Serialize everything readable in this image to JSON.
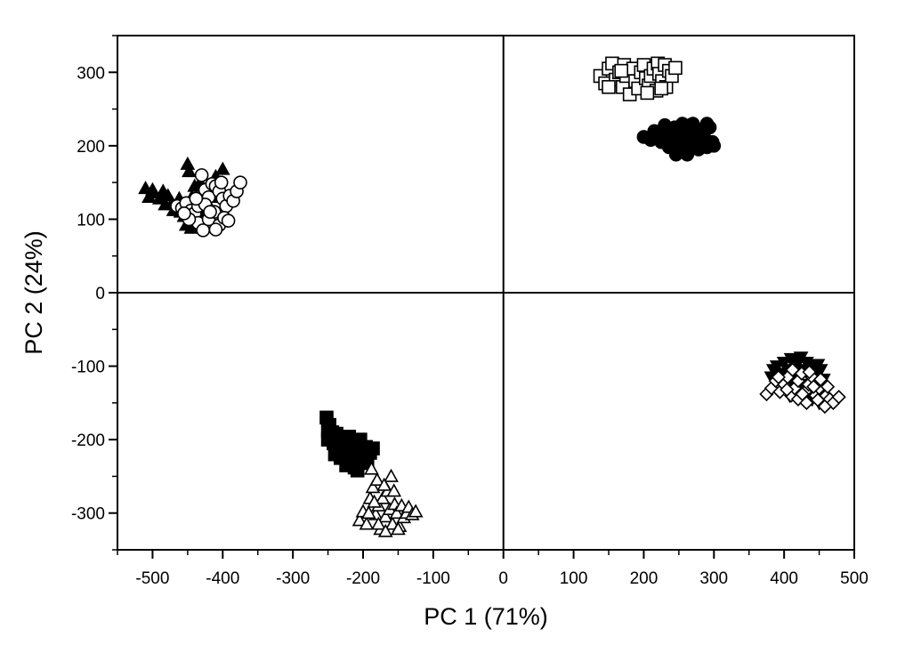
{
  "chart_data": {
    "type": "scatter",
    "title": "",
    "xlabel": "PC 1 (71%)",
    "ylabel": "PC 2 (24%)",
    "xlim": [
      -550,
      500
    ],
    "ylim": [
      -350,
      350
    ],
    "x_ticks": [
      -500,
      -400,
      -300,
      -200,
      -100,
      0,
      100,
      200,
      300,
      400,
      500
    ],
    "y_ticks": [
      300,
      200,
      100,
      0,
      -100,
      -200,
      -300
    ],
    "x_tick_labels": [
      "-500",
      "-400",
      "-300",
      "-200",
      "-100",
      "0",
      "100",
      "200",
      "300",
      "400",
      "500"
    ],
    "y_tick_labels": [
      "300",
      "200",
      "100",
      "0",
      "-100",
      "-200",
      "-300"
    ],
    "zero_lines": true,
    "grid": false,
    "legend": "none",
    "series": [
      {
        "marker": "triangle-filled",
        "points": [
          [
            -510,
            142
          ],
          [
            -505,
            130
          ],
          [
            -498,
            136
          ],
          [
            -490,
            128
          ],
          [
            -485,
            138
          ],
          [
            -478,
            132
          ],
          [
            -472,
            122
          ],
          [
            -466,
            118
          ],
          [
            -460,
            110
          ],
          [
            -455,
            104
          ],
          [
            -448,
            98
          ],
          [
            -452,
            92
          ],
          [
            -445,
            88
          ],
          [
            -440,
            100
          ],
          [
            -450,
            175
          ],
          [
            -448,
            165
          ],
          [
            -440,
            145
          ],
          [
            -432,
            150
          ],
          [
            -425,
            140
          ],
          [
            -418,
            135
          ],
          [
            -412,
            148
          ],
          [
            -405,
            130
          ],
          [
            -400,
            168
          ],
          [
            -410,
            158
          ],
          [
            -420,
            120
          ],
          [
            -462,
            128
          ],
          [
            -470,
            112
          ],
          [
            -438,
            112
          ],
          [
            -428,
            105
          ],
          [
            -500,
            140
          ],
          [
            -482,
            120
          ],
          [
            -444,
            130
          ]
        ]
      },
      {
        "marker": "circle-open",
        "points": [
          [
            -465,
            118
          ],
          [
            -458,
            115
          ],
          [
            -452,
            122
          ],
          [
            -445,
            112
          ],
          [
            -440,
            108
          ],
          [
            -435,
            118
          ],
          [
            -430,
            160
          ],
          [
            -425,
            140
          ],
          [
            -420,
            130
          ],
          [
            -415,
            148
          ],
          [
            -410,
            145
          ],
          [
            -405,
            138
          ],
          [
            -400,
            128
          ],
          [
            -395,
            118
          ],
          [
            -390,
            132
          ],
          [
            -385,
            125
          ],
          [
            -380,
            138
          ],
          [
            -375,
            150
          ],
          [
            -435,
            95
          ],
          [
            -428,
            85
          ],
          [
            -420,
            100
          ],
          [
            -412,
            110
          ],
          [
            -405,
            92
          ],
          [
            -398,
            102
          ],
          [
            -410,
            86
          ],
          [
            -392,
            98
          ],
          [
            -425,
            120
          ],
          [
            -418,
            110
          ],
          [
            -448,
            100
          ],
          [
            -455,
            108
          ],
          [
            -438,
            128
          ],
          [
            -402,
            150
          ]
        ]
      },
      {
        "marker": "square-open",
        "points": [
          [
            138,
            295
          ],
          [
            145,
            285
          ],
          [
            150,
            305
          ],
          [
            155,
            312
          ],
          [
            160,
            290
          ],
          [
            165,
            300
          ],
          [
            170,
            280
          ],
          [
            172,
            310
          ],
          [
            175,
            295
          ],
          [
            180,
            270
          ],
          [
            185,
            305
          ],
          [
            188,
            288
          ],
          [
            192,
            278
          ],
          [
            196,
            300
          ],
          [
            200,
            310
          ],
          [
            203,
            292
          ],
          [
            207,
            282
          ],
          [
            210,
            295
          ],
          [
            214,
            305
          ],
          [
            218,
            275
          ],
          [
            220,
            312
          ],
          [
            222,
            298
          ],
          [
            226,
            288
          ],
          [
            230,
            310
          ],
          [
            232,
            280
          ],
          [
            236,
            302
          ],
          [
            240,
            295
          ],
          [
            245,
            306
          ],
          [
            150,
            280
          ],
          [
            168,
            302
          ],
          [
            205,
            272
          ],
          [
            225,
            278
          ]
        ]
      },
      {
        "marker": "circle-filled",
        "points": [
          [
            200,
            212
          ],
          [
            210,
            208
          ],
          [
            215,
            220
          ],
          [
            220,
            215
          ],
          [
            225,
            205
          ],
          [
            228,
            222
          ],
          [
            232,
            210
          ],
          [
            236,
            198
          ],
          [
            240,
            215
          ],
          [
            244,
            225
          ],
          [
            248,
            205
          ],
          [
            252,
            195
          ],
          [
            255,
            218
          ],
          [
            258,
            212
          ],
          [
            262,
            200
          ],
          [
            266,
            228
          ],
          [
            270,
            215
          ],
          [
            274,
            205
          ],
          [
            278,
            195
          ],
          [
            282,
            222
          ],
          [
            286,
            212
          ],
          [
            290,
            198
          ],
          [
            294,
            225
          ],
          [
            298,
            205
          ],
          [
            300,
            200
          ],
          [
            246,
            188
          ],
          [
            262,
            188
          ],
          [
            230,
            228
          ],
          [
            270,
            230
          ],
          [
            290,
            230
          ],
          [
            278,
            208
          ],
          [
            255,
            230
          ]
        ]
      },
      {
        "marker": "square-filled",
        "points": [
          [
            -252,
            -170
          ],
          [
            -248,
            -180
          ],
          [
            -244,
            -190
          ],
          [
            -250,
            -200
          ],
          [
            -246,
            -195
          ],
          [
            -242,
            -205
          ],
          [
            -238,
            -192
          ],
          [
            -234,
            -212
          ],
          [
            -230,
            -200
          ],
          [
            -226,
            -220
          ],
          [
            -222,
            -208
          ],
          [
            -218,
            -228
          ],
          [
            -214,
            -215
          ],
          [
            -210,
            -232
          ],
          [
            -206,
            -220
          ],
          [
            -202,
            -212
          ],
          [
            -198,
            -222
          ],
          [
            -194,
            -232
          ],
          [
            -190,
            -218
          ],
          [
            -186,
            -212
          ],
          [
            -240,
            -220
          ],
          [
            -236,
            -200
          ],
          [
            -232,
            -225
          ],
          [
            -228,
            -210
          ],
          [
            -224,
            -235
          ],
          [
            -220,
            -196
          ],
          [
            -216,
            -205
          ],
          [
            -212,
            -238
          ],
          [
            -208,
            -242
          ],
          [
            -204,
            -200
          ],
          [
            -196,
            -210
          ],
          [
            -250,
            -188
          ]
        ]
      },
      {
        "marker": "triangle-open",
        "points": [
          [
            -205,
            -310
          ],
          [
            -200,
            -298
          ],
          [
            -195,
            -315
          ],
          [
            -190,
            -280
          ],
          [
            -186,
            -265
          ],
          [
            -182,
            -302
          ],
          [
            -178,
            -290
          ],
          [
            -175,
            -322
          ],
          [
            -172,
            -280
          ],
          [
            -168,
            -305
          ],
          [
            -165,
            -270
          ],
          [
            -162,
            -295
          ],
          [
            -160,
            -250
          ],
          [
            -158,
            -315
          ],
          [
            -155,
            -288
          ],
          [
            -152,
            -300
          ],
          [
            -148,
            -318
          ],
          [
            -145,
            -290
          ],
          [
            -142,
            -306
          ],
          [
            -138,
            -300
          ],
          [
            -135,
            -292
          ],
          [
            -130,
            -302
          ],
          [
            -125,
            -298
          ],
          [
            -188,
            -240
          ],
          [
            -180,
            -255
          ],
          [
            -170,
            -262
          ],
          [
            -178,
            -315
          ],
          [
            -150,
            -322
          ],
          [
            -168,
            -325
          ],
          [
            -192,
            -300
          ],
          [
            -156,
            -270
          ],
          [
            -184,
            -285
          ]
        ]
      },
      {
        "marker": "triangle-down-filled",
        "points": [
          [
            385,
            -105
          ],
          [
            390,
            -100
          ],
          [
            395,
            -110
          ],
          [
            400,
            -95
          ],
          [
            405,
            -105
          ],
          [
            410,
            -90
          ],
          [
            415,
            -100
          ],
          [
            418,
            -110
          ],
          [
            420,
            -95
          ],
          [
            424,
            -88
          ],
          [
            428,
            -105
          ],
          [
            432,
            -95
          ],
          [
            436,
            -115
          ],
          [
            440,
            -100
          ],
          [
            444,
            -110
          ],
          [
            448,
            -98
          ],
          [
            452,
            -105
          ],
          [
            456,
            -118
          ],
          [
            412,
            -128
          ],
          [
            420,
            -135
          ],
          [
            430,
            -140
          ],
          [
            440,
            -145
          ],
          [
            450,
            -150
          ],
          [
            398,
            -120
          ],
          [
            408,
            -140
          ],
          [
            426,
            -125
          ],
          [
            436,
            -130
          ],
          [
            445,
            -125
          ],
          [
            382,
            -115
          ],
          [
            402,
            -115
          ],
          [
            416,
            -118
          ],
          [
            446,
            -138
          ]
        ]
      },
      {
        "marker": "diamond-open",
        "points": [
          [
            375,
            -138
          ],
          [
            382,
            -130
          ],
          [
            388,
            -120
          ],
          [
            394,
            -135
          ],
          [
            400,
            -125
          ],
          [
            405,
            -115
          ],
          [
            410,
            -140
          ],
          [
            415,
            -130
          ],
          [
            420,
            -120
          ],
          [
            425,
            -110
          ],
          [
            430,
            -135
          ],
          [
            435,
            -125
          ],
          [
            440,
            -115
          ],
          [
            445,
            -140
          ],
          [
            450,
            -130
          ],
          [
            455,
            -150
          ],
          [
            460,
            -140
          ],
          [
            465,
            -145
          ],
          [
            470,
            -150
          ],
          [
            478,
            -142
          ],
          [
            412,
            -105
          ],
          [
            420,
            -145
          ],
          [
            432,
            -150
          ],
          [
            442,
            -128
          ],
          [
            452,
            -118
          ],
          [
            462,
            -128
          ],
          [
            392,
            -115
          ],
          [
            404,
            -132
          ],
          [
            426,
            -138
          ],
          [
            436,
            -108
          ],
          [
            448,
            -146
          ],
          [
            458,
            -155
          ]
        ]
      }
    ]
  }
}
